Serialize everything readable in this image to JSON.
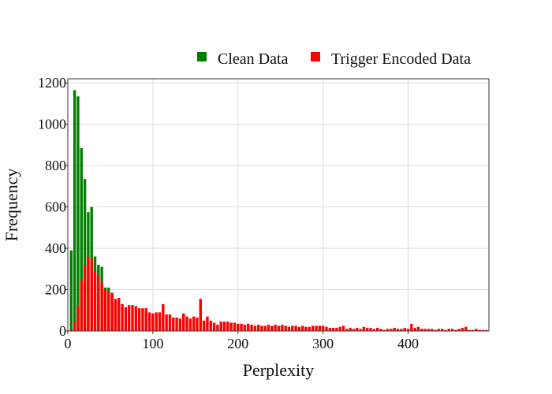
{
  "chart_data": {
    "type": "bar",
    "title": "",
    "xlabel": "Perplexity",
    "ylabel": "Frequency",
    "xlim": [
      0,
      495
    ],
    "ylim": [
      0,
      1220
    ],
    "xticks": [
      0,
      100,
      200,
      300,
      400
    ],
    "yticks": [
      0,
      200,
      400,
      600,
      800,
      1000,
      1200
    ],
    "grid": true,
    "legend_position": "top-right",
    "bin_width": 3.7,
    "series": [
      {
        "name": "Clean Data",
        "color": "#008000",
        "bins": [
          [
            4,
            390
          ],
          [
            8,
            1165
          ],
          [
            12,
            1135
          ],
          [
            16,
            885
          ],
          [
            20,
            735
          ],
          [
            24,
            575
          ],
          [
            28,
            600
          ],
          [
            32,
            360
          ],
          [
            36,
            320
          ],
          [
            40,
            310
          ],
          [
            44,
            210
          ],
          [
            48,
            210
          ],
          [
            52,
            185
          ],
          [
            56,
            140
          ]
        ]
      },
      {
        "name": "Trigger Encoded Data",
        "color": "#ff0000",
        "bins": [
          [
            4,
            5
          ],
          [
            8,
            45
          ],
          [
            12,
            120
          ],
          [
            16,
            245
          ],
          [
            20,
            320
          ],
          [
            24,
            360
          ],
          [
            28,
            350
          ],
          [
            32,
            290
          ],
          [
            36,
            270
          ],
          [
            40,
            235
          ],
          [
            44,
            200
          ],
          [
            48,
            190
          ],
          [
            52,
            180
          ],
          [
            56,
            155
          ],
          [
            60,
            160
          ],
          [
            64,
            130
          ],
          [
            68,
            115
          ],
          [
            72,
            125
          ],
          [
            76,
            125
          ],
          [
            80,
            120
          ],
          [
            84,
            110
          ],
          [
            88,
            110
          ],
          [
            92,
            110
          ],
          [
            96,
            90
          ],
          [
            100,
            85
          ],
          [
            104,
            90
          ],
          [
            108,
            90
          ],
          [
            112,
            130
          ],
          [
            116,
            80
          ],
          [
            120,
            80
          ],
          [
            124,
            65
          ],
          [
            128,
            65
          ],
          [
            132,
            60
          ],
          [
            136,
            85
          ],
          [
            140,
            70
          ],
          [
            144,
            60
          ],
          [
            148,
            70
          ],
          [
            152,
            65
          ],
          [
            156,
            155
          ],
          [
            160,
            50
          ],
          [
            164,
            70
          ],
          [
            168,
            50
          ],
          [
            172,
            40
          ],
          [
            176,
            30
          ],
          [
            180,
            45
          ],
          [
            184,
            45
          ],
          [
            188,
            45
          ],
          [
            192,
            40
          ],
          [
            196,
            40
          ],
          [
            200,
            35
          ],
          [
            204,
            35
          ],
          [
            208,
            30
          ],
          [
            212,
            35
          ],
          [
            216,
            30
          ],
          [
            220,
            25
          ],
          [
            224,
            30
          ],
          [
            228,
            25
          ],
          [
            232,
            25
          ],
          [
            236,
            30
          ],
          [
            240,
            25
          ],
          [
            244,
            30
          ],
          [
            248,
            25
          ],
          [
            252,
            30
          ],
          [
            256,
            25
          ],
          [
            260,
            20
          ],
          [
            264,
            25
          ],
          [
            268,
            25
          ],
          [
            272,
            20
          ],
          [
            276,
            25
          ],
          [
            280,
            20
          ],
          [
            284,
            20
          ],
          [
            288,
            25
          ],
          [
            292,
            25
          ],
          [
            296,
            25
          ],
          [
            300,
            25
          ],
          [
            304,
            20
          ],
          [
            308,
            15
          ],
          [
            312,
            15
          ],
          [
            316,
            15
          ],
          [
            320,
            20
          ],
          [
            324,
            25
          ],
          [
            328,
            10
          ],
          [
            332,
            15
          ],
          [
            336,
            10
          ],
          [
            340,
            15
          ],
          [
            344,
            10
          ],
          [
            348,
            20
          ],
          [
            352,
            15
          ],
          [
            356,
            15
          ],
          [
            360,
            10
          ],
          [
            364,
            15
          ],
          [
            368,
            10
          ],
          [
            372,
            5
          ],
          [
            376,
            10
          ],
          [
            380,
            10
          ],
          [
            384,
            15
          ],
          [
            388,
            10
          ],
          [
            392,
            10
          ],
          [
            396,
            15
          ],
          [
            400,
            10
          ],
          [
            404,
            35
          ],
          [
            408,
            15
          ],
          [
            412,
            20
          ],
          [
            416,
            10
          ],
          [
            420,
            10
          ],
          [
            424,
            10
          ],
          [
            428,
            10
          ],
          [
            432,
            5
          ],
          [
            436,
            10
          ],
          [
            440,
            10
          ],
          [
            444,
            5
          ],
          [
            448,
            10
          ],
          [
            452,
            10
          ],
          [
            456,
            5
          ],
          [
            460,
            10
          ],
          [
            464,
            15
          ],
          [
            468,
            20
          ],
          [
            472,
            5
          ],
          [
            476,
            5
          ],
          [
            480,
            10
          ],
          [
            484,
            5
          ],
          [
            488,
            5
          ],
          [
            492,
            5
          ]
        ]
      }
    ]
  }
}
